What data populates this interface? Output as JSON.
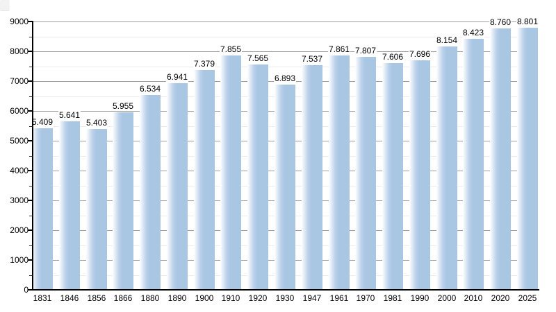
{
  "chart_data": {
    "type": "bar",
    "title": "",
    "xlabel": "",
    "ylabel": "",
    "categories": [
      "1831",
      "1846",
      "1856",
      "1866",
      "1880",
      "1890",
      "1900",
      "1910",
      "1920",
      "1930",
      "1947",
      "1961",
      "1970",
      "1981",
      "1990",
      "2000",
      "2010",
      "2020",
      "2025"
    ],
    "values": [
      5409,
      5641,
      5403,
      5955,
      6534,
      6941,
      7379,
      7855,
      7565,
      6893,
      7537,
      7861,
      7807,
      7606,
      7696,
      8154,
      8423,
      8760,
      8801
    ],
    "value_labels": [
      "5.409",
      "5.641",
      "5.403",
      "5.955",
      "6.534",
      "6.941",
      "7.379",
      "7.855",
      "7.565",
      "6.893",
      "7.537",
      "7.861",
      "7.807",
      "7.606",
      "7.696",
      "8.154",
      "8.423",
      "8.760",
      "8.801"
    ],
    "ylim": [
      0,
      9000
    ],
    "y_major_step": 1000,
    "y_minor_step": 500,
    "y_tick_labels": [
      "0",
      "1000",
      "2000",
      "3000",
      "4000",
      "5000",
      "6000",
      "7000",
      "8000",
      "9000"
    ],
    "grid": "on",
    "legend": "none",
    "colors": {
      "bar_fill": "#a9c6e3",
      "bar_gradient_start": "#ffffff",
      "grid_major": "#9c9c9c",
      "grid_minor": "#ececec",
      "axis": "#000000",
      "text": "#000000",
      "background": "#ffffff"
    }
  }
}
